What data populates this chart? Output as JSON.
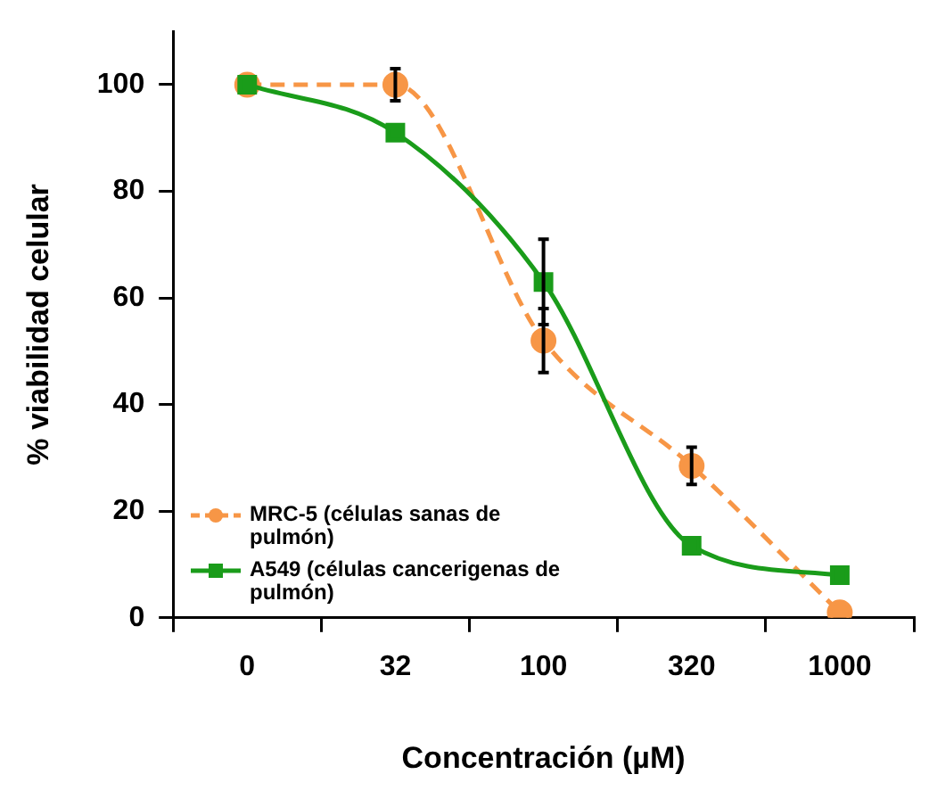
{
  "chart_data": {
    "type": "line",
    "xlabel": "Concentración (µM)",
    "ylabel": "% viabilidad celular",
    "categories": [
      "0",
      "32",
      "100",
      "320",
      "1000"
    ],
    "ylim": [
      0,
      110
    ],
    "yticks": [
      0,
      20,
      40,
      60,
      80,
      100
    ],
    "grid": false,
    "legend": "bottom left",
    "series": [
      {
        "name": "MRC-5 (células sanas de pulmón)",
        "color": "#f79646",
        "values": [
          100,
          100,
          52,
          28.5,
          1
        ],
        "errors": [
          null,
          3,
          6,
          3.5,
          null
        ],
        "marker": "circle",
        "line_style": "dashed"
      },
      {
        "name": "A549 (células cancerigenas de pulmón)",
        "color": "#1a9c1a",
        "values": [
          100,
          91,
          63,
          13.5,
          8
        ],
        "errors": [
          null,
          null,
          8,
          null,
          null
        ],
        "marker": "square",
        "line_style": "solid"
      }
    ]
  }
}
